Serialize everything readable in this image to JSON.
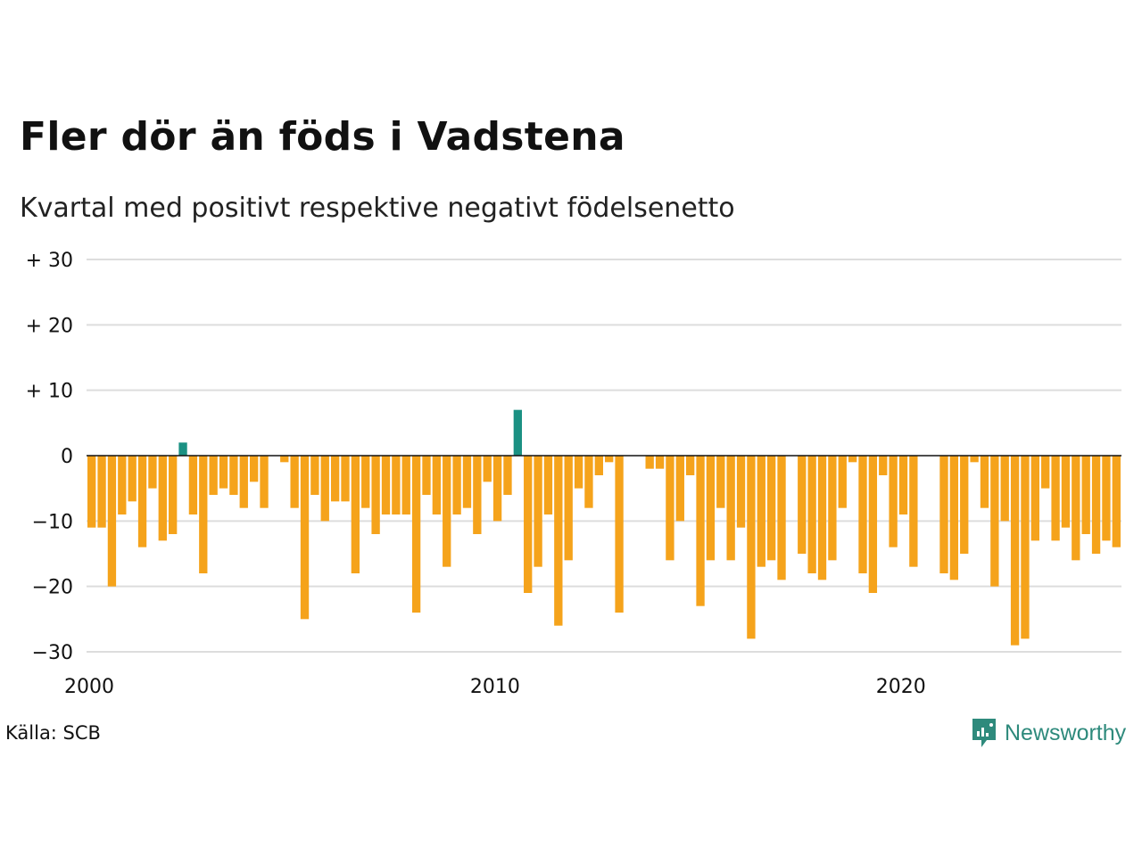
{
  "title": "Fler dör än föds i Vadstena",
  "subtitle": "Kvartal med positivt respektive negativt födelsenetto",
  "source": "Källa: SCB",
  "brand": "Newsworthy",
  "colors": {
    "positive": "#1b9183",
    "negative": "#f5a31b",
    "grid": "#dddddd",
    "zero_line": "#111111",
    "brand": "#2e8a7c"
  },
  "chart_data": {
    "type": "bar",
    "title": "Fler dör än föds i Vadstena",
    "subtitle": "Kvartal med positivt respektive negativt födelsenetto",
    "xlabel": "",
    "ylabel": "",
    "x_start": 2000,
    "x_end": 2025.5,
    "periods_per_year": 4,
    "ylim": [
      -30,
      30
    ],
    "y_ticks": [
      -30,
      -20,
      -10,
      0,
      10,
      20,
      30
    ],
    "y_tick_labels": [
      "−30",
      "−20",
      "−10",
      "0",
      "+ 10",
      "+ 20",
      "+ 30"
    ],
    "x_ticks": [
      2000,
      2010,
      2020
    ],
    "x_tick_labels": [
      "2000",
      "2010",
      "2020"
    ],
    "grid": true,
    "legend": "none",
    "series": [
      {
        "values": [
          -11,
          -11,
          -20,
          -9,
          -7,
          -14,
          -5,
          -13,
          -12,
          2,
          -9,
          -18,
          -6,
          -5,
          -6,
          -8,
          -4,
          -8,
          0,
          -1,
          -8,
          -25,
          -6,
          -10,
          -7,
          -7,
          -18,
          -8,
          -12,
          -9,
          -9,
          -9,
          -24,
          -6,
          -9,
          -17,
          -9,
          -8,
          -12,
          -4,
          -10,
          -6,
          7,
          -21,
          -17,
          -9,
          -26,
          -16,
          -5,
          -8,
          -3,
          -1,
          -24,
          0,
          0,
          -2,
          -2,
          -16,
          -10,
          -3,
          -23,
          -16,
          -8,
          -16,
          -11,
          -28,
          -17,
          -16,
          -19,
          0,
          -15,
          -18,
          -19,
          -16,
          -8,
          -1,
          -18,
          -21,
          -3,
          -14,
          -9,
          -17,
          0,
          0,
          -18,
          -19,
          -15,
          -1,
          -8,
          -20,
          -10,
          -29,
          -28,
          -13,
          -5,
          -13,
          -11,
          -16,
          -12,
          -15,
          -13,
          -14
        ]
      }
    ]
  }
}
